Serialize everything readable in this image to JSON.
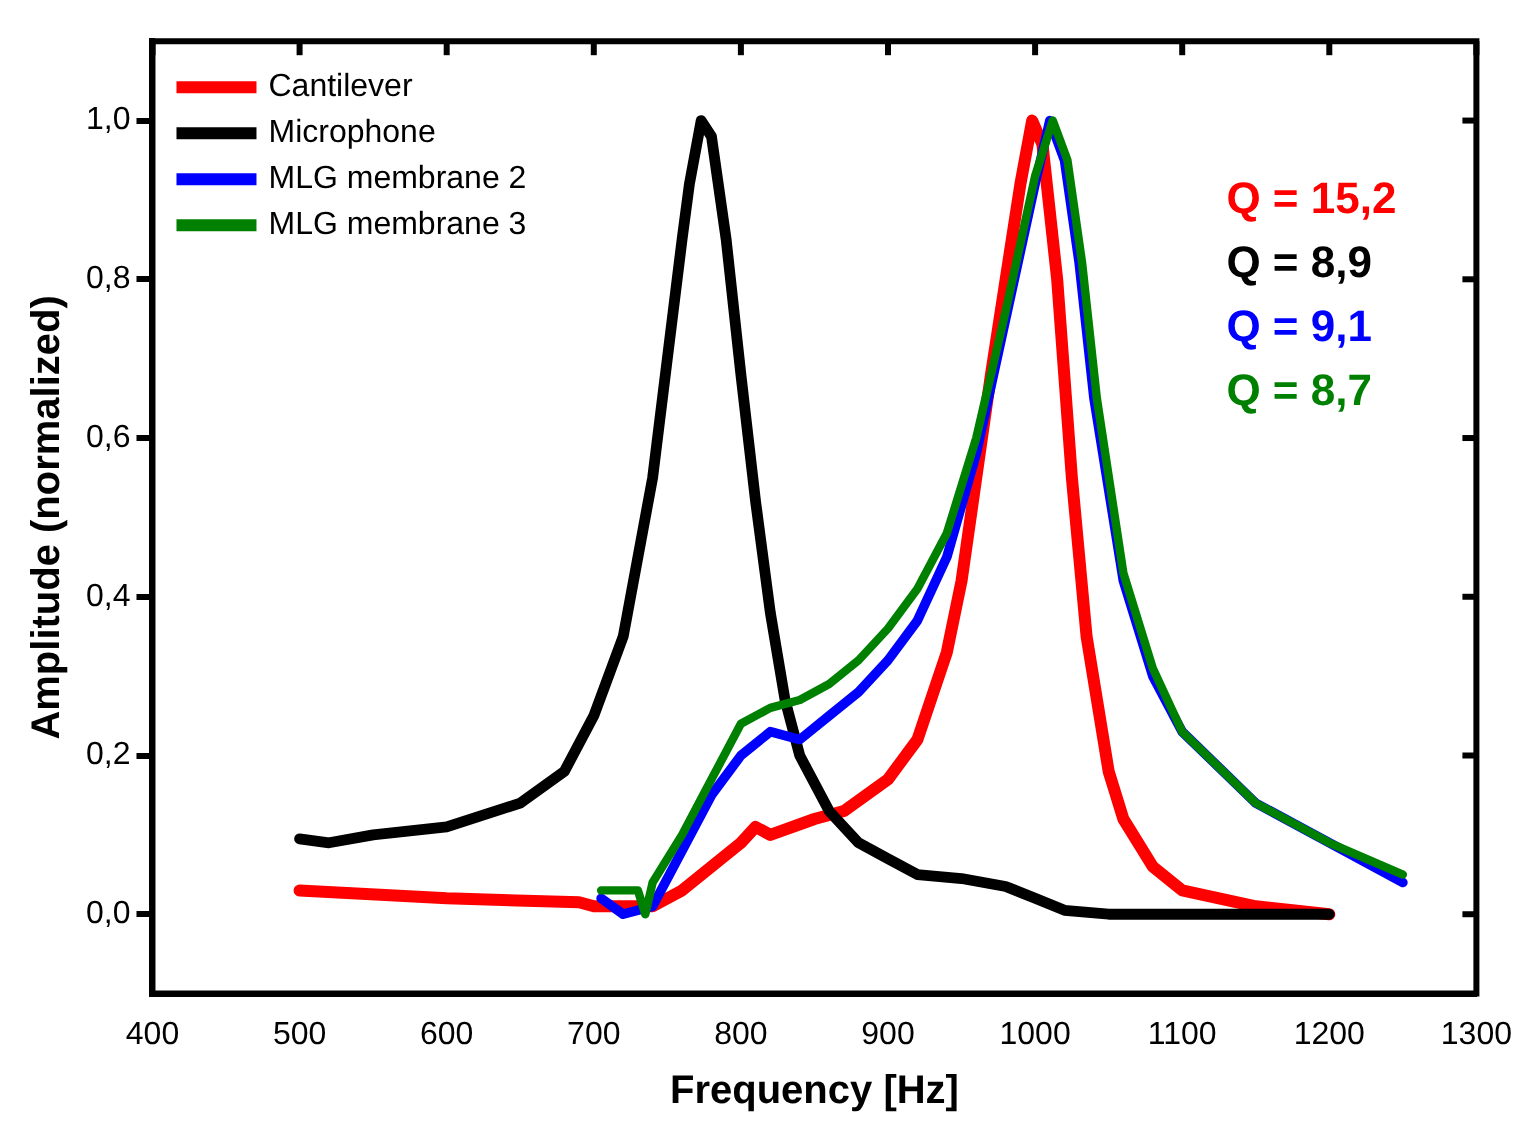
{
  "chart_data": {
    "type": "line",
    "xlabel": "Frequency [Hz]",
    "ylabel": "Amplitude (normalized)",
    "xlim": [
      400,
      1300
    ],
    "xticks": [
      400,
      500,
      600,
      700,
      800,
      900,
      1000,
      1100,
      1200,
      1300
    ],
    "ylim": [
      -0.1,
      1.1
    ],
    "yticks": [
      {
        "value": 0,
        "label": "0,0"
      },
      {
        "value": 0.2,
        "label": "0,2"
      },
      {
        "value": 0.4,
        "label": "0,4"
      },
      {
        "value": 0.6,
        "label": "0,6"
      },
      {
        "value": 0.8,
        "label": "0,8"
      },
      {
        "value": 1,
        "label": "1,0"
      }
    ],
    "grid": false,
    "legend": "top left",
    "marker": "none",
    "line_style": "solid",
    "series": [
      {
        "name": "Cantilever",
        "color": "#ff0000",
        "x": [
          500,
          600,
          690,
          700,
          740,
          760,
          780,
          800,
          810,
          820,
          850,
          870,
          900,
          920,
          940,
          950,
          960,
          970,
          980,
          990,
          998,
          1005,
          1015,
          1025,
          1035,
          1050,
          1060,
          1080,
          1100,
          1150,
          1200
        ],
        "values": [
          0.03,
          0.02,
          0.015,
          0.01,
          0.01,
          0.03,
          0.06,
          0.09,
          0.11,
          0.1,
          0.12,
          0.13,
          0.17,
          0.22,
          0.33,
          0.42,
          0.55,
          0.68,
          0.8,
          0.92,
          1.0,
          0.97,
          0.8,
          0.55,
          0.35,
          0.18,
          0.12,
          0.06,
          0.03,
          0.01,
          0.0
        ]
      },
      {
        "name": "Microphone",
        "color": "#000000",
        "x": [
          500,
          520,
          550,
          600,
          650,
          680,
          700,
          720,
          740,
          750,
          760,
          765,
          773,
          780,
          790,
          800,
          810,
          820,
          830,
          840,
          860,
          880,
          900,
          920,
          950,
          980,
          1000,
          1020,
          1050,
          1100,
          1200
        ],
        "values": [
          0.095,
          0.09,
          0.1,
          0.11,
          0.14,
          0.18,
          0.25,
          0.35,
          0.55,
          0.7,
          0.85,
          0.92,
          1.0,
          0.98,
          0.85,
          0.68,
          0.52,
          0.38,
          0.27,
          0.2,
          0.13,
          0.09,
          0.07,
          0.05,
          0.045,
          0.035,
          0.02,
          0.005,
          0.0,
          0.0,
          0.0
        ]
      },
      {
        "name": "MLG membrane 2",
        "color": "#0000ff",
        "x": [
          705,
          720,
          740,
          760,
          780,
          800,
          820,
          840,
          860,
          880,
          900,
          920,
          940,
          960,
          980,
          1000,
          1010,
          1020,
          1030,
          1040,
          1060,
          1080,
          1100,
          1150,
          1200,
          1250
        ],
        "values": [
          0.02,
          0.0,
          0.01,
          0.08,
          0.15,
          0.2,
          0.23,
          0.22,
          0.25,
          0.28,
          0.32,
          0.37,
          0.45,
          0.58,
          0.75,
          0.92,
          1.0,
          0.95,
          0.82,
          0.65,
          0.42,
          0.3,
          0.23,
          0.14,
          0.09,
          0.04
        ]
      },
      {
        "name": "MLG membrane 3",
        "color": "#008000",
        "x": [
          705,
          730,
          735,
          740,
          760,
          780,
          800,
          820,
          840,
          860,
          880,
          900,
          920,
          940,
          960,
          980,
          1000,
          1012,
          1022,
          1032,
          1042,
          1060,
          1080,
          1100,
          1150,
          1200,
          1250
        ],
        "values": [
          0.03,
          0.03,
          0.0,
          0.04,
          0.1,
          0.17,
          0.24,
          0.26,
          0.27,
          0.29,
          0.32,
          0.36,
          0.41,
          0.48,
          0.6,
          0.76,
          0.93,
          1.0,
          0.95,
          0.82,
          0.65,
          0.43,
          0.31,
          0.23,
          0.14,
          0.09,
          0.05
        ]
      }
    ],
    "annotations": [
      "Q = 15,2",
      "Q = 8,9",
      "Q = 9,1",
      "Q = 8,7"
    ]
  }
}
